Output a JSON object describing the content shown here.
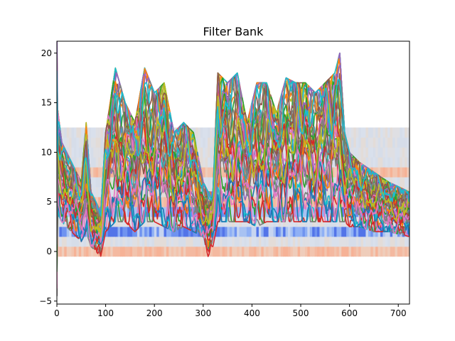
{
  "chart_data": {
    "type": "line",
    "title": "Filter Bank",
    "xlabel": "",
    "ylabel": "",
    "xlim": [
      0,
      723
    ],
    "ylim": [
      -5.3,
      21.2
    ],
    "x_ticks": [
      0,
      100,
      200,
      300,
      400,
      500,
      600,
      700
    ],
    "y_ticks": [
      -5,
      0,
      5,
      10,
      15,
      20
    ],
    "grid": false,
    "legend": "none",
    "background_heatmap": {
      "type": "heatmap",
      "y_range": [
        -0.5,
        12.5
      ],
      "rows": 13,
      "columns": 723,
      "colormap": "coolwarm",
      "row_bands": [
        {
          "rows": [
            0,
            0
          ],
          "tone": "warm"
        },
        {
          "rows": [
            1,
            1
          ],
          "tone": "neutral"
        },
        {
          "rows": [
            2,
            2
          ],
          "tone": "cool"
        },
        {
          "rows": [
            3,
            3
          ],
          "tone": "neutral"
        },
        {
          "rows": [
            4,
            4
          ],
          "tone": "cool"
        },
        {
          "rows": [
            5,
            5
          ],
          "tone": "warm"
        },
        {
          "rows": [
            6,
            7
          ],
          "tone": "neutral"
        },
        {
          "rows": [
            8,
            8
          ],
          "tone": "warm"
        },
        {
          "rows": [
            9,
            12
          ],
          "tone": "neutral"
        }
      ]
    },
    "series_count": 40,
    "series_colors": [
      "#1f77b4",
      "#ff7f0e",
      "#2ca02c",
      "#d62728",
      "#9467bd",
      "#8c564b",
      "#e377c2",
      "#7f7f7f",
      "#bcbd22",
      "#17becf"
    ],
    "envelope_keypoints": {
      "x": [
        0,
        10,
        30,
        50,
        60,
        70,
        90,
        100,
        120,
        140,
        160,
        180,
        200,
        220,
        240,
        260,
        280,
        300,
        310,
        320,
        330,
        350,
        370,
        390,
        410,
        430,
        450,
        470,
        490,
        510,
        530,
        550,
        570,
        580,
        590,
        600,
        620,
        650,
        680,
        723
      ],
      "max": [
        15,
        11,
        9,
        7,
        13,
        6,
        4,
        12,
        18.5,
        15,
        13,
        18.5,
        16,
        17,
        12,
        13,
        12,
        7,
        6,
        6,
        18,
        17,
        18,
        13,
        17,
        17,
        14,
        17.5,
        17,
        17,
        16,
        17,
        18,
        20,
        12,
        10,
        9,
        8,
        7,
        6
      ],
      "min": [
        4,
        3,
        2,
        1,
        2,
        0.5,
        -0.5,
        2,
        3,
        3,
        2,
        3,
        3,
        2.5,
        2,
        2.5,
        2,
        1.5,
        -0.5,
        0.5,
        3,
        3,
        3,
        3,
        2.5,
        3,
        3,
        3,
        3,
        3,
        3,
        3,
        3,
        3,
        3,
        2.5,
        2.5,
        2,
        2,
        1.5
      ]
    }
  }
}
